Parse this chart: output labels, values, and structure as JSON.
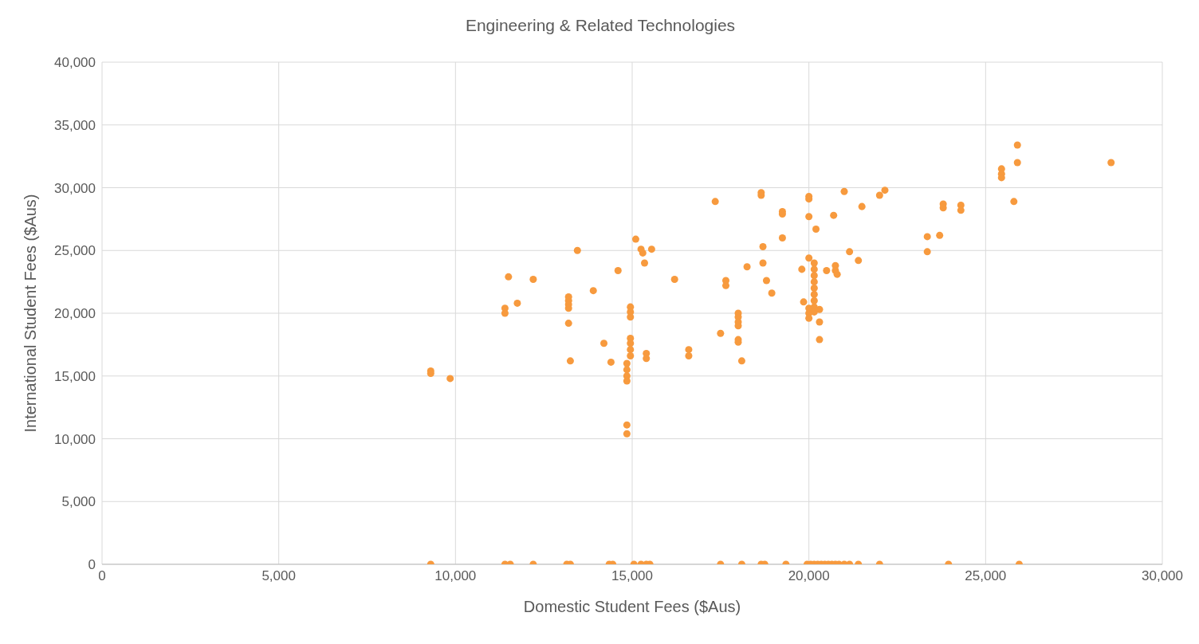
{
  "chart_data": {
    "type": "scatter",
    "title": "Engineering & Related Technologies",
    "xlabel": "Domestic Student Fees ($Aus)",
    "ylabel": "International Student Fees ($Aus)",
    "xlim": [
      0,
      30000
    ],
    "ylim": [
      0,
      40000
    ],
    "xticks": [
      0,
      {
        "value": 5000,
        "label": "5,000"
      },
      {
        "value": 10000,
        "label": "10,000"
      },
      {
        "value": 15000,
        "label": "15,000"
      },
      {
        "value": 20000,
        "label": "20,000"
      },
      {
        "value": 25000,
        "label": "25,000"
      },
      {
        "value": 30000,
        "label": "30,000"
      }
    ],
    "yticks": [
      0,
      {
        "value": 5000,
        "label": "5,000"
      },
      {
        "value": 10000,
        "label": "10,000"
      },
      {
        "value": 15000,
        "label": "15,000"
      },
      {
        "value": 20000,
        "label": "20,000"
      },
      {
        "value": 25000,
        "label": "25,000"
      },
      {
        "value": 30000,
        "label": "30,000"
      },
      {
        "value": 35000,
        "label": "35,000"
      },
      {
        "value": 40000,
        "label": "40,000"
      }
    ],
    "grid": true,
    "marker": "circle",
    "series": [
      {
        "color": "#f79a3e",
        "x": [
          9300,
          9300,
          9850,
          11400,
          11400,
          11500,
          11750,
          12200,
          13200,
          13200,
          13200,
          13200,
          13200,
          13250,
          13450,
          13900,
          14200,
          14400,
          14600,
          14850,
          14850,
          14850,
          14850,
          14850,
          14850,
          14950,
          14950,
          14950,
          14950,
          14950,
          14950,
          14950,
          15100,
          15250,
          15300,
          15350,
          15400,
          15400,
          15550,
          16200,
          16600,
          16600,
          17350,
          17500,
          17650,
          17650,
          18000,
          18000,
          18000,
          18000,
          18000,
          18000,
          18100,
          18250,
          18650,
          18650,
          18700,
          18700,
          18800,
          18950,
          19250,
          19250,
          19250,
          19800,
          19850,
          20000,
          20000,
          20000,
          20000,
          20000,
          20000,
          20000,
          20150,
          20150,
          20150,
          20150,
          20150,
          20150,
          20150,
          20150,
          20150,
          20200,
          20300,
          20300,
          20300,
          20500,
          20700,
          20750,
          20750,
          20800,
          21000,
          21150,
          21400,
          21500,
          22000,
          22150,
          23350,
          23350,
          23700,
          23800,
          23800,
          24300,
          24300,
          25450,
          25450,
          25450,
          25800,
          25900,
          25900,
          28550,
          9300,
          11400,
          11550,
          12200,
          13150,
          13250,
          14350,
          14450,
          15050,
          15250,
          15400,
          15500,
          17500,
          18100,
          18650,
          18750,
          19350,
          19950,
          20050,
          20150,
          20250,
          20350,
          20450,
          20550,
          20650,
          20750,
          20850,
          21000,
          21150,
          21400,
          22000,
          23950,
          25950
        ],
        "values": [
          15400,
          15200,
          14800,
          20400,
          20000,
          22900,
          20800,
          22700,
          21300,
          21000,
          20700,
          20400,
          19200,
          16200,
          25000,
          21800,
          17600,
          16100,
          23400,
          16000,
          15500,
          15000,
          14600,
          11100,
          10400,
          20500,
          20100,
          19700,
          18000,
          17600,
          17100,
          16600,
          25900,
          25100,
          24800,
          24000,
          16800,
          16400,
          25100,
          22700,
          17100,
          16600,
          28900,
          18400,
          22600,
          22200,
          20000,
          19700,
          19300,
          19000,
          17900,
          17700,
          16200,
          23700,
          29600,
          29400,
          25300,
          24000,
          22600,
          21600,
          28100,
          27900,
          26000,
          23500,
          20900,
          29300,
          29100,
          27700,
          24400,
          20400,
          20000,
          19600,
          24000,
          23500,
          23000,
          22500,
          22000,
          21500,
          21000,
          20500,
          20100,
          26700,
          20300,
          19300,
          17900,
          23400,
          27800,
          23800,
          23400,
          23100,
          29700,
          24900,
          24200,
          28500,
          29400,
          29800,
          26100,
          24900,
          26200,
          28700,
          28400,
          28600,
          28200,
          31500,
          31100,
          30800,
          28900,
          33400,
          32000,
          32000,
          0,
          0,
          0,
          0,
          0,
          0,
          0,
          0,
          0,
          0,
          0,
          0,
          0,
          0,
          0,
          0,
          0,
          0,
          0,
          0,
          0,
          0,
          0,
          0,
          0,
          0,
          0,
          0,
          0,
          0,
          0,
          0,
          0
        ]
      }
    ]
  }
}
